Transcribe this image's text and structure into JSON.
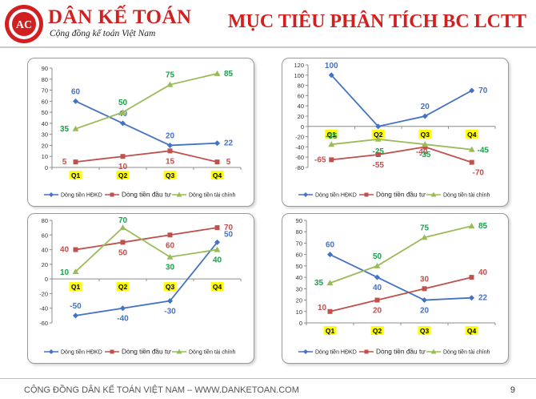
{
  "header": {
    "brand": "DÂN KẾ TOÁN",
    "tagline": "Cộng đồng kế toán Việt Nam",
    "logo_text": "AC DANKETOAN",
    "title": "MỤC TIÊU PHÂN TÍCH BC LCTT"
  },
  "footer": {
    "text": "CỘNG ĐỒNG DÂN KẾ TOÁN VIỆT NAM – WWW.DANKETOAN.COM",
    "page": "9"
  },
  "colors": {
    "brand_red": "#d21f1f",
    "series_blue": "#4472c4",
    "series_red": "#c0504d",
    "series_green": "#9bbb59",
    "label_green": "#16a34a",
    "category_yellow": "#ffff00"
  },
  "chart_data": [
    {
      "type": "line",
      "categories": [
        "Q1",
        "Q2",
        "Q3",
        "Q4"
      ],
      "ylim": [
        0,
        90
      ],
      "yticks": [
        0,
        10,
        20,
        30,
        40,
        50,
        60,
        70,
        80,
        90
      ],
      "series": [
        {
          "name": "Dòng tiền HĐKD",
          "values": [
            60,
            40,
            20,
            22
          ],
          "labels": [
            "60",
            "40",
            "20",
            "22"
          ]
        },
        {
          "name": "Dòng tiền đầu tư",
          "values": [
            5,
            10,
            15,
            5
          ],
          "labels": [
            "5",
            "10",
            "15",
            "5"
          ]
        },
        {
          "name": "Dòng tiền tài chính",
          "values": [
            35,
            50,
            75,
            85
          ],
          "labels": [
            "35",
            "50",
            "75",
            "85"
          ]
        }
      ],
      "legend": "bottom"
    },
    {
      "type": "line",
      "categories": [
        "Q1",
        "Q2",
        "Q3",
        "Q4"
      ],
      "ylim": [
        -80,
        120
      ],
      "yticks": [
        -80,
        -60,
        -40,
        -20,
        0,
        20,
        40,
        60,
        80,
        100,
        120
      ],
      "series": [
        {
          "name": "Dòng tiền HĐKD",
          "values": [
            100,
            0,
            20,
            70
          ],
          "labels": [
            "100",
            "",
            "20",
            "70"
          ]
        },
        {
          "name": "Dòng tiền đầu tư",
          "values": [
            -65,
            -55,
            -40,
            -70
          ],
          "labels": [
            "-65",
            "-55",
            "-40",
            "-70"
          ]
        },
        {
          "name": "Dòng tiền tài chính",
          "values": [
            -35,
            -25,
            -35,
            -45
          ],
          "labels": [
            "-35",
            "-25",
            "-35",
            "-45"
          ]
        }
      ],
      "legend": "bottom"
    },
    {
      "type": "line",
      "categories": [
        "Q1",
        "Q2",
        "Q3",
        "Q4"
      ],
      "ylim": [
        -60,
        80
      ],
      "yticks": [
        -60,
        -40,
        -20,
        0,
        20,
        40,
        60,
        80
      ],
      "series": [
        {
          "name": "Dòng tiền HĐKD",
          "values": [
            -50,
            -40,
            -30,
            50
          ],
          "labels": [
            "-50",
            "-40",
            "-30",
            "50"
          ]
        },
        {
          "name": "Dòng tiền đầu tư",
          "values": [
            40,
            50,
            60,
            70
          ],
          "labels": [
            "40",
            "50",
            "60",
            "70"
          ]
        },
        {
          "name": "Dòng tiền tài chính",
          "values": [
            10,
            70,
            30,
            40
          ],
          "labels": [
            "10",
            "70",
            "30",
            "40"
          ]
        }
      ],
      "legend": "bottom"
    },
    {
      "type": "line",
      "categories": [
        "Q1",
        "Q2",
        "Q3",
        "Q4"
      ],
      "ylim": [
        0,
        90
      ],
      "yticks": [
        0,
        10,
        20,
        30,
        40,
        50,
        60,
        70,
        80,
        90
      ],
      "series": [
        {
          "name": "Dòng tiền HĐKD",
          "values": [
            60,
            40,
            20,
            22
          ],
          "labels": [
            "60",
            "40",
            "20",
            "22"
          ]
        },
        {
          "name": "Dòng tiền đầu tư",
          "values": [
            10,
            20,
            30,
            40
          ],
          "labels": [
            "10",
            "20",
            "30",
            "40"
          ]
        },
        {
          "name": "Dòng tiền tài chính",
          "values": [
            35,
            50,
            75,
            85
          ],
          "labels": [
            "35",
            "50",
            "75",
            "85"
          ]
        }
      ],
      "legend": "bottom"
    }
  ]
}
